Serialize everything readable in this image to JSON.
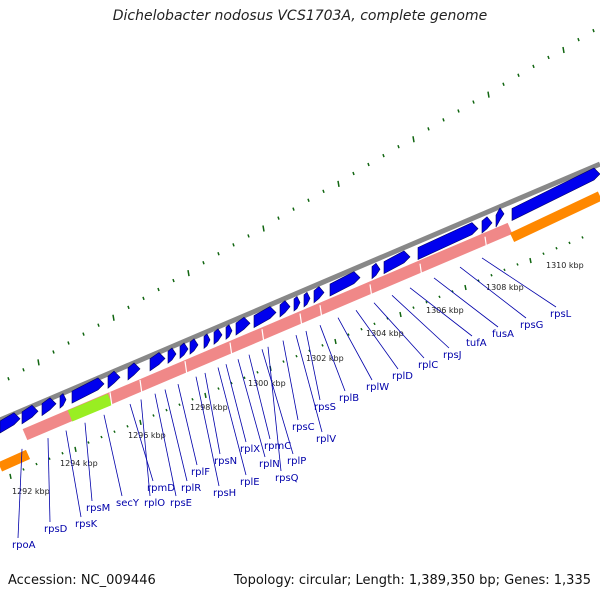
{
  "title": "Dichelobacter nodosus VCS1703A, complete genome",
  "footer": {
    "accession": "Accession: NC_009446",
    "summary": "Topology: circular; Length: 1,389,350 bp; Genes: 1,335"
  },
  "colors": {
    "backbone": "#888888",
    "forward_cds": "#0000ee",
    "reverse_trna_block": "#f08888",
    "highlight_green": "#99ee22",
    "orange_band": "#ff8800",
    "gene_label": "#0000aa",
    "tick": "#116611"
  },
  "scale_ticks": [
    "1292 kbp",
    "1294 kbp",
    "1296 kbp",
    "1298 kbp",
    "1300 kbp",
    "1302 kbp",
    "1304 kbp",
    "1306 kbp",
    "1308 kbp",
    "1310 kbp"
  ],
  "gene_labels": [
    "rpoA",
    "rpsD",
    "rpsK",
    "rpsM",
    "secY",
    "rpmD",
    "rplO",
    "rpsE",
    "rplR",
    "rplF",
    "rpsH",
    "rpsN",
    "rplE",
    "rplX",
    "rplN",
    "rpmC",
    "rplP",
    "rpsQ",
    "rpsC",
    "rplV",
    "rpsS",
    "rplB",
    "rplW",
    "rplD",
    "rplC",
    "rpsJ",
    "tufA",
    "fusA",
    "rpsG",
    "rpsL"
  ]
}
